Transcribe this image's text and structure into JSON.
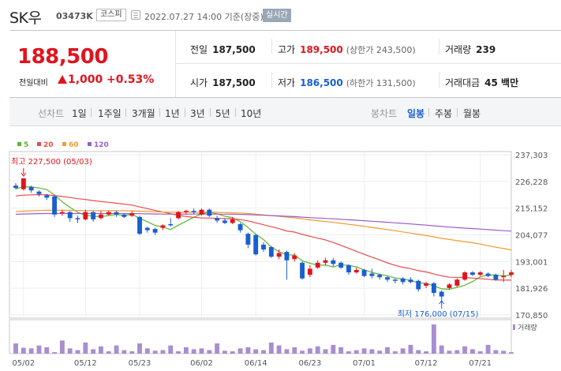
{
  "header": {
    "stock_name": "SK우",
    "stock_code": "03473K",
    "market": "코스피",
    "datetime": "2022.07.27 14:00 기준(장중)",
    "realtime_label": "실시간"
  },
  "price": {
    "current": "188,500",
    "change_label": "전일대비",
    "change_amount": "1,000",
    "change_pct": "+0.53%"
  },
  "stats": {
    "prev_close_label": "전일",
    "prev_close": "187,500",
    "high_label": "고가",
    "high": "189,500",
    "upper_limit": "(상한가 243,500)",
    "volume_label": "거래량",
    "volume": "239",
    "open_label": "시가",
    "open": "187,500",
    "low_label": "저가",
    "low": "186,500",
    "lower_limit": "(하한가 131,500)",
    "value_label": "거래대금",
    "value": "45 백만"
  },
  "period_tabs": {
    "line_label": "선차트",
    "line_periods": [
      "1일",
      "1주일",
      "3개월",
      "1년",
      "3년",
      "5년",
      "10년"
    ],
    "candle_label": "봉차트",
    "candle_periods": [
      "일봉",
      "주봉",
      "월봉"
    ],
    "active_candle": "일봉"
  },
  "colors": {
    "up": "#e0141e",
    "down": "#1a5fd1",
    "ma5": "#5cb531",
    "ma20": "#e84a4a",
    "ma60": "#f39a2c",
    "ma120": "#9c5ccc",
    "volume": "#a98ed0"
  },
  "chart_data": {
    "type": "candlestick",
    "legend": [
      {
        "name": "5",
        "color": "#5cb531"
      },
      {
        "name": "20",
        "color": "#e84a4a"
      },
      {
        "name": "60",
        "color": "#f39a2c"
      },
      {
        "name": "120",
        "color": "#9c5ccc"
      }
    ],
    "y_ticks": [
      237303,
      226228,
      215152,
      204077,
      193001,
      181926,
      170850
    ],
    "y_tick_labels": [
      "237,303",
      "226,228",
      "215,152",
      "204,077",
      "193,001",
      "181,926",
      "170,850"
    ],
    "ylim": [
      170850,
      237303
    ],
    "x_tick_labels": [
      "05/02",
      "05/12",
      "05/23",
      "06/02",
      "06/14",
      "06/23",
      "07/01",
      "07/12",
      "07/21"
    ],
    "x_tick_index": [
      1,
      9,
      16,
      24,
      31,
      38,
      45,
      53,
      60
    ],
    "annotation_high": "최고 227,500 (05/03)",
    "annotation_low": "최저 176,000 (07/15)",
    "volume_label": "거래량",
    "candles": [
      {
        "o": 224500,
        "c": 223500,
        "h": 225500,
        "l": 223000
      },
      {
        "o": 223000,
        "c": 227500,
        "h": 227500,
        "l": 222500
      },
      {
        "o": 224000,
        "c": 222500,
        "h": 224500,
        "l": 221500
      },
      {
        "o": 222000,
        "c": 221000,
        "h": 222500,
        "l": 220000
      },
      {
        "o": 220500,
        "c": 219500,
        "h": 221000,
        "l": 218500
      },
      {
        "o": 220000,
        "c": 212500,
        "h": 220500,
        "l": 211500
      },
      {
        "o": 213000,
        "c": 213500,
        "h": 214500,
        "l": 212000
      },
      {
        "o": 213500,
        "c": 211000,
        "h": 214000,
        "l": 209500
      },
      {
        "o": 211000,
        "c": 210500,
        "h": 212000,
        "l": 209000
      },
      {
        "o": 210500,
        "c": 213500,
        "h": 214500,
        "l": 210000
      },
      {
        "o": 213500,
        "c": 210500,
        "h": 214000,
        "l": 209500
      },
      {
        "o": 211000,
        "c": 212500,
        "h": 214000,
        "l": 210500
      },
      {
        "o": 212500,
        "c": 213500,
        "h": 214000,
        "l": 212000
      },
      {
        "o": 213500,
        "c": 212500,
        "h": 214000,
        "l": 211500
      },
      {
        "o": 212500,
        "c": 211500,
        "h": 213000,
        "l": 211000
      },
      {
        "o": 212000,
        "c": 213000,
        "h": 214000,
        "l": 211500
      },
      {
        "o": 211500,
        "c": 204500,
        "h": 212000,
        "l": 204000
      },
      {
        "o": 207000,
        "c": 206000,
        "h": 207500,
        "l": 205000
      },
      {
        "o": 206500,
        "c": 205000,
        "h": 207000,
        "l": 204000
      },
      {
        "o": 207000,
        "c": 208000,
        "h": 208500,
        "l": 206000
      },
      {
        "o": 208500,
        "c": 208000,
        "h": 211000,
        "l": 207500
      },
      {
        "o": 211000,
        "c": 213500,
        "h": 214000,
        "l": 210500
      },
      {
        "o": 213500,
        "c": 214000,
        "h": 214500,
        "l": 212500
      },
      {
        "o": 214000,
        "c": 213500,
        "h": 215000,
        "l": 212500
      },
      {
        "o": 212500,
        "c": 214500,
        "h": 215000,
        "l": 212000
      },
      {
        "o": 214500,
        "c": 212000,
        "h": 215000,
        "l": 211500
      },
      {
        "o": 211000,
        "c": 210000,
        "h": 212000,
        "l": 209000
      },
      {
        "o": 210000,
        "c": 209000,
        "h": 211000,
        "l": 208500
      },
      {
        "o": 209000,
        "c": 210500,
        "h": 211500,
        "l": 208500
      },
      {
        "o": 208500,
        "c": 206000,
        "h": 209000,
        "l": 205000
      },
      {
        "o": 204500,
        "c": 200000,
        "h": 205000,
        "l": 198500
      },
      {
        "o": 204000,
        "c": 196000,
        "h": 204500,
        "l": 195500
      },
      {
        "o": 200000,
        "c": 198000,
        "h": 201000,
        "l": 197000
      },
      {
        "o": 199000,
        "c": 195000,
        "h": 199500,
        "l": 194500
      },
      {
        "o": 195000,
        "c": 196500,
        "h": 198000,
        "l": 194000
      },
      {
        "o": 197000,
        "c": 193500,
        "h": 197500,
        "l": 185500
      },
      {
        "o": 194000,
        "c": 195500,
        "h": 196500,
        "l": 193000
      },
      {
        "o": 192500,
        "c": 186000,
        "h": 193000,
        "l": 185500
      },
      {
        "o": 187500,
        "c": 190000,
        "h": 191500,
        "l": 186500
      },
      {
        "o": 190500,
        "c": 192500,
        "h": 193500,
        "l": 190000
      },
      {
        "o": 192500,
        "c": 193500,
        "h": 194500,
        "l": 191500
      },
      {
        "o": 193500,
        "c": 192000,
        "h": 194500,
        "l": 191000
      },
      {
        "o": 192500,
        "c": 190500,
        "h": 193000,
        "l": 190000
      },
      {
        "o": 191500,
        "c": 188500,
        "h": 192000,
        "l": 187500
      },
      {
        "o": 188500,
        "c": 189500,
        "h": 190500,
        "l": 188000
      },
      {
        "o": 189500,
        "c": 187000,
        "h": 190000,
        "l": 186500
      },
      {
        "o": 188000,
        "c": 187000,
        "h": 190000,
        "l": 186000
      },
      {
        "o": 187500,
        "c": 186500,
        "h": 188000,
        "l": 185500
      },
      {
        "o": 186500,
        "c": 185500,
        "h": 187000,
        "l": 184500
      },
      {
        "o": 185500,
        "c": 185000,
        "h": 186000,
        "l": 184000
      },
      {
        "o": 186000,
        "c": 184500,
        "h": 186500,
        "l": 183500
      },
      {
        "o": 185500,
        "c": 184500,
        "h": 186500,
        "l": 184000
      },
      {
        "o": 185000,
        "c": 181500,
        "h": 185500,
        "l": 180500
      },
      {
        "o": 183000,
        "c": 184000,
        "h": 184500,
        "l": 182000
      },
      {
        "o": 184000,
        "c": 180000,
        "h": 184500,
        "l": 178500
      },
      {
        "o": 180500,
        "c": 178500,
        "h": 181000,
        "l": 176000
      },
      {
        "o": 182000,
        "c": 183500,
        "h": 184000,
        "l": 181500
      },
      {
        "o": 183000,
        "c": 185500,
        "h": 186000,
        "l": 182500
      },
      {
        "o": 185500,
        "c": 188500,
        "h": 189000,
        "l": 185000
      },
      {
        "o": 188500,
        "c": 187500,
        "h": 189000,
        "l": 187000
      },
      {
        "o": 187500,
        "c": 188500,
        "h": 189000,
        "l": 187000
      },
      {
        "o": 188000,
        "c": 187000,
        "h": 188500,
        "l": 186500
      },
      {
        "o": 187500,
        "c": 185500,
        "h": 188000,
        "l": 185000
      },
      {
        "o": 186500,
        "c": 187000,
        "h": 189500,
        "l": 184500
      },
      {
        "o": 187500,
        "c": 188500,
        "h": 189500,
        "l": 186500
      }
    ],
    "volumes": [
      35,
      20,
      18,
      28,
      22,
      5,
      45,
      18,
      12,
      38,
      15,
      25,
      8,
      28,
      12,
      8,
      35,
      18,
      10,
      12,
      28,
      8,
      22,
      15,
      18,
      12,
      35,
      10,
      8,
      18,
      22,
      15,
      12,
      38,
      28,
      15,
      22,
      10,
      18,
      25,
      15,
      30,
      22,
      8,
      12,
      18,
      15,
      10,
      22,
      8,
      18,
      30,
      12,
      8,
      100,
      28,
      10,
      12,
      25,
      15,
      8,
      30,
      12,
      10,
      5
    ]
  }
}
